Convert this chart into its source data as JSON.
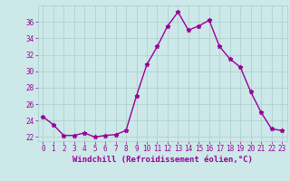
{
  "hours": [
    0,
    1,
    2,
    3,
    4,
    5,
    6,
    7,
    8,
    9,
    10,
    11,
    12,
    13,
    14,
    15,
    16,
    17,
    18,
    19,
    20,
    21,
    22,
    23
  ],
  "values": [
    24.5,
    23.5,
    22.2,
    22.2,
    22.5,
    22.0,
    22.2,
    22.3,
    22.8,
    27.0,
    30.8,
    33.0,
    35.5,
    37.2,
    35.0,
    35.5,
    36.2,
    33.0,
    31.5,
    30.5,
    27.5,
    25.0,
    23.0,
    22.8
  ],
  "line_color": "#990099",
  "bg_color": "#cce8e8",
  "grid_color": "#aacccc",
  "xlabel": "Windchill (Refroidissement éolien,°C)",
  "ylim": [
    21.5,
    38.0
  ],
  "yticks": [
    22,
    24,
    26,
    28,
    30,
    32,
    34,
    36
  ],
  "xticks": [
    0,
    1,
    2,
    3,
    4,
    5,
    6,
    7,
    8,
    9,
    10,
    11,
    12,
    13,
    14,
    15,
    16,
    17,
    18,
    19,
    20,
    21,
    22,
    23
  ],
  "marker": "*",
  "markersize": 3.5,
  "linewidth": 1.0,
  "xlabel_fontsize": 6.5,
  "tick_fontsize": 5.5,
  "label_color": "#990099"
}
